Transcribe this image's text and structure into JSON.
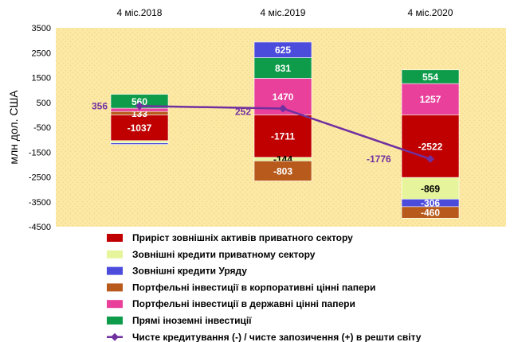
{
  "chart_data": {
    "type": "bar",
    "stacked": true,
    "categories": [
      "4 міс.2018",
      "4 міс.2019",
      "4 міс.2020"
    ],
    "ylabel": "млн дол. США",
    "ylim": [
      -4500,
      3500
    ],
    "yticks": [
      3500,
      2500,
      1500,
      500,
      -500,
      -1500,
      -2500,
      -3500,
      -4500
    ],
    "plot_background": "#fce9a6",
    "series": [
      {
        "name": "Приріст зовнішніх активів приватного сектору",
        "color": "#c00000",
        "label_color": "#ffffff",
        "values": [
          -1037,
          -1711,
          -2522
        ]
      },
      {
        "name": "Зовнішні кредити приватному сектору",
        "color": "#e6f59b",
        "label_color": "#000000",
        "values": [
          -93,
          -144,
          -869
        ]
      },
      {
        "name": "Зовнішні кредити Уряду",
        "color": "#4b4bdc",
        "label_color": "#ffffff",
        "values": [
          -60,
          0,
          -306
        ]
      },
      {
        "name": "Портфельні інвестиції в корпоративні цінні папери",
        "color": "#b85a1b",
        "label_color": "#ffffff",
        "values": [
          133,
          -803,
          -460
        ]
      },
      {
        "name": "Портфельні інвестиції в державні цінні папери",
        "color": "#e8409b",
        "label_color": "#ffffff",
        "values": [
          133,
          1470,
          1257
        ]
      },
      {
        "name": "Прямі іноземні інвестиції",
        "color": "#0e9c4a",
        "label_color": "#ffffff",
        "values": [
          560,
          831,
          554
        ]
      }
    ],
    "extra_stack": [
      {
        "category_index": 1,
        "name": "Зовнішні кредити Уряду",
        "color": "#4b4bdc",
        "value": 625
      }
    ],
    "data_labels": [
      [
        "-1037",
        "",
        "",
        "133",
        "",
        "560"
      ],
      [
        "-1711",
        "-144",
        "",
        "-803",
        "1470",
        "831"
      ],
      [
        "-2522",
        "-869",
        "-306",
        "-460",
        "1257",
        "554"
      ]
    ],
    "extra_label": "625",
    "line_series": {
      "name": "Чисте кредитування  (-) / чисте запозичення (+) в решти світу",
      "color": "#7030a0",
      "values": [
        356,
        252,
        -1776
      ],
      "labels": [
        "356",
        "252",
        "-1776"
      ]
    },
    "legend_order": [
      "Приріст зовнішніх активів приватного сектору",
      "Зовнішні кредити приватному сектору",
      "Зовнішні кредити Уряду",
      "Портфельні інвестиції в корпоративні цінні папери",
      "Портфельні інвестиції в державні цінні папери",
      "Прямі іноземні інвестиції",
      "Чисте кредитування  (-) / чисте запозичення (+) в решти світу"
    ],
    "legend_placement": "bottom-center",
    "grid": false
  }
}
